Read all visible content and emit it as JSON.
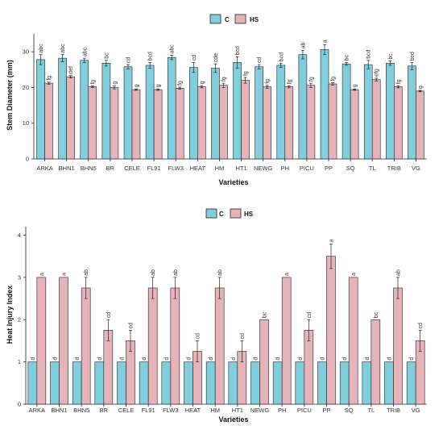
{
  "colors": {
    "C": "#80cede",
    "HS": "#e6b3b8",
    "errorbar": "#222222",
    "axis": "#222222"
  },
  "chart_data": [
    {
      "type": "bar",
      "ylabel": "Stem Diameter (mm)",
      "xlabel": "Varieties",
      "ylim": [
        0,
        35
      ],
      "yticks": [
        0,
        10,
        20,
        30
      ],
      "legend_position": "top-center",
      "categories": [
        "ARKA",
        "BHN1",
        "BHN5",
        "BR",
        "CELE",
        "FL91",
        "FLW3",
        "HEAT",
        "HM",
        "HT1",
        "NEWG",
        "PH",
        "PICU",
        "PP",
        "SQ",
        "TL",
        "TRIB",
        "VG"
      ],
      "series": [
        {
          "name": "C",
          "values": [
            27.8,
            28.2,
            27.6,
            26.8,
            25.8,
            26.2,
            28.4,
            25.6,
            25.4,
            27.0,
            25.8,
            26.2,
            29.2,
            30.6,
            26.6,
            26.4,
            26.8,
            26.0
          ],
          "errors": [
            1.4,
            1.0,
            0.6,
            0.8,
            0.6,
            0.8,
            0.6,
            1.4,
            1.2,
            1.6,
            0.6,
            0.6,
            1.2,
            1.4,
            0.4,
            1.2,
            0.6,
            1.0
          ],
          "labels": [
            "abc",
            "abc",
            "abc",
            "bc",
            "cd",
            "bcd",
            "abc",
            "cd",
            "cde",
            "bcd",
            "cd",
            "bcd",
            "ab",
            "a",
            "bc",
            "bcd",
            "bc",
            "bcd"
          ]
        },
        {
          "name": "HS",
          "values": [
            21.2,
            23.0,
            20.2,
            20.0,
            19.4,
            19.4,
            19.8,
            20.2,
            20.6,
            22.0,
            20.2,
            20.2,
            20.6,
            21.0,
            19.4,
            22.2,
            20.2,
            19.0
          ],
          "errors": [
            0.3,
            0.3,
            0.2,
            0.4,
            0.2,
            0.2,
            0.3,
            0.3,
            0.6,
            0.8,
            0.4,
            0.3,
            0.6,
            0.3,
            0.2,
            0.4,
            0.3,
            0.2
          ],
          "labels": [
            "fg",
            "def",
            "fg",
            "g",
            "g",
            "g",
            "fg",
            "g",
            "fg",
            "fg",
            "fg",
            "fg",
            "fg",
            "fg",
            "g",
            "efg",
            "fg",
            "g"
          ]
        }
      ]
    },
    {
      "type": "bar",
      "ylabel": "Heat Injury Index",
      "xlabel": "Varieties",
      "ylim": [
        0,
        4.2
      ],
      "yticks": [
        0,
        1,
        2,
        3,
        4
      ],
      "legend_position": "top-center",
      "categories": [
        "ARKA",
        "BHN1",
        "BHN5",
        "BR",
        "CELE",
        "FL91",
        "FLW3",
        "HEAT",
        "HM",
        "HT1",
        "NEWG",
        "PH",
        "PICU",
        "PP",
        "SQ",
        "TL",
        "TRIB",
        "VG"
      ],
      "series": [
        {
          "name": "C",
          "values": [
            1,
            1,
            1,
            1,
            1,
            1,
            1,
            1,
            1,
            1,
            1,
            1,
            1,
            1,
            1,
            1,
            1,
            1
          ],
          "errors": [
            0,
            0,
            0,
            0,
            0,
            0,
            0,
            0,
            0,
            0,
            0,
            0,
            0,
            0,
            0,
            0,
            0,
            0
          ],
          "labels": [
            "d",
            "d",
            "d",
            "d",
            "d",
            "d",
            "d",
            "d",
            "d",
            "d",
            "d",
            "d",
            "d",
            "d",
            "d",
            "d",
            "d",
            "d"
          ]
        },
        {
          "name": "HS",
          "values": [
            3.0,
            3.0,
            2.75,
            1.75,
            1.5,
            2.75,
            2.75,
            1.25,
            2.75,
            1.25,
            2.0,
            3.0,
            1.75,
            3.5,
            3.0,
            2.0,
            2.75,
            1.5
          ],
          "errors": [
            0,
            0,
            0.25,
            0.25,
            0.25,
            0.25,
            0.25,
            0.25,
            0.25,
            0.25,
            0,
            0,
            0.25,
            0.29,
            0,
            0,
            0.25,
            0.25
          ],
          "labels": [
            "a",
            "a",
            "ab",
            "cd",
            "cd",
            "ab",
            "ab",
            "cd",
            "ab",
            "cd",
            "bc",
            "a",
            "cd",
            "a",
            "a",
            "bc",
            "ab",
            "cd"
          ]
        }
      ]
    }
  ]
}
